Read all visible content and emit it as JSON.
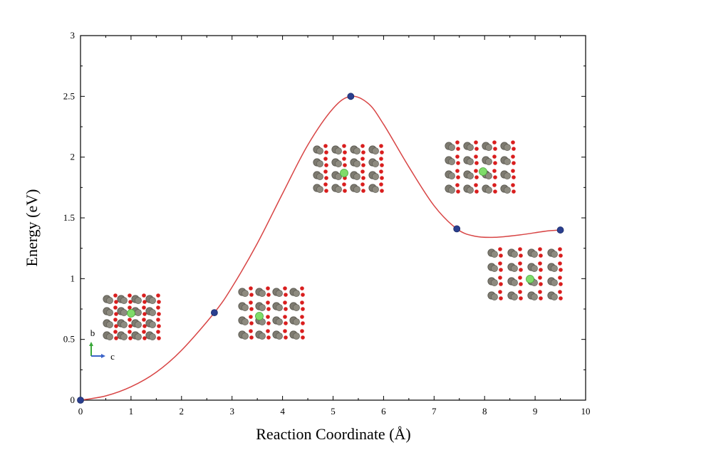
{
  "chart_data": {
    "type": "line",
    "xlabel": "Reaction Coordinate (Å)",
    "ylabel": "Energy (eV)",
    "xlim": [
      0,
      10
    ],
    "ylim": [
      0,
      3
    ],
    "xticks": [
      "0",
      "1",
      "2",
      "3",
      "4",
      "5",
      "6",
      "7",
      "8",
      "9",
      "10"
    ],
    "yticks": [
      "0",
      "0.5",
      "1",
      "1.5",
      "2",
      "2.5",
      "3"
    ],
    "grid": false,
    "series": [
      {
        "color": "#d84545",
        "points": [
          {
            "x": 0,
            "y": 0
          },
          {
            "x": 2.65,
            "y": 0.72
          },
          {
            "x": 5.35,
            "y": 2.5
          },
          {
            "x": 7.45,
            "y": 1.41
          },
          {
            "x": 9.5,
            "y": 1.4
          }
        ],
        "curve": [
          [
            0,
            0
          ],
          [
            0.5,
            0.035
          ],
          [
            1,
            0.11
          ],
          [
            1.5,
            0.23
          ],
          [
            2,
            0.41
          ],
          [
            2.65,
            0.72
          ],
          [
            3,
            0.93
          ],
          [
            3.5,
            1.29
          ],
          [
            4,
            1.7
          ],
          [
            4.5,
            2.1
          ],
          [
            5,
            2.4
          ],
          [
            5.35,
            2.5
          ],
          [
            5.7,
            2.44
          ],
          [
            6,
            2.27
          ],
          [
            6.5,
            1.92
          ],
          [
            7,
            1.6
          ],
          [
            7.45,
            1.41
          ],
          [
            7.8,
            1.35
          ],
          [
            8.2,
            1.34
          ],
          [
            8.7,
            1.36
          ],
          [
            9.2,
            1.39
          ],
          [
            9.5,
            1.4
          ]
        ],
        "marker_color": "#2a3f8f"
      }
    ],
    "inset_axes_labels": {
      "b": "b",
      "c": "c"
    }
  }
}
